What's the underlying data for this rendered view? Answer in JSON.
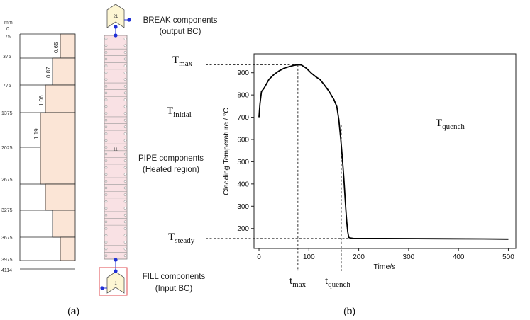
{
  "panel_a": {
    "caption": "(a)",
    "unit": "mm",
    "axis_ticks": [
      "0",
      "75",
      "375",
      "775",
      "1375",
      "2025",
      "2675",
      "3275",
      "3675",
      "3975",
      "4114"
    ],
    "power_factors": [
      "0.65",
      "0.87",
      "1.06",
      "1.19"
    ],
    "break_id": "21",
    "pipe_id": "11",
    "fill_id": "1",
    "labels": {
      "break_line1": "BREAK components",
      "break_line2": "(output BC)",
      "pipe_line1": "PIPE components",
      "pipe_line2": "(Heated region)",
      "fill_line1": "FILL components",
      "fill_line2": "(Input BC)"
    },
    "colors": {
      "fill": "#fbe5d6",
      "pipe_fill": "#f9e1e4",
      "node": "#1f2fd6",
      "frame": "#e0484f"
    }
  },
  "panel_b": {
    "caption": "(b)",
    "chart_data": {
      "type": "line",
      "xlabel": "Time/s",
      "ylabel": "Cladding Temperature / °C",
      "xlim": [
        -10,
        515
      ],
      "ylim": [
        110,
        985
      ],
      "x_ticks": [
        "0",
        "100",
        "200",
        "300",
        "400",
        "500"
      ],
      "y_ticks": [
        "200",
        "300",
        "400",
        "500",
        "600",
        "700",
        "800",
        "900"
      ],
      "series": [
        {
          "x": [
            0,
            2,
            5,
            10,
            20,
            30,
            40,
            50,
            60,
            70,
            78,
            85,
            95,
            105,
            115,
            122,
            130,
            140,
            150,
            156,
            160,
            164,
            167,
            170,
            172,
            174,
            176,
            178,
            180,
            183,
            190,
            250,
            350,
            450,
            500
          ],
          "y": [
            700,
            760,
            815,
            830,
            870,
            892,
            908,
            920,
            927,
            933,
            936,
            935,
            920,
            898,
            880,
            870,
            848,
            818,
            780,
            748,
            690,
            600,
            520,
            430,
            360,
            290,
            230,
            185,
            160,
            157,
            155,
            155,
            154,
            153,
            152
          ]
        }
      ],
      "annotations": {
        "Tmax": {
          "base": "T",
          "sub": "max",
          "value": 936
        },
        "Tinitial": {
          "base": "T",
          "sub": "initial",
          "value": 710
        },
        "Tquench": {
          "base": "T",
          "sub": "quench",
          "value": 665
        },
        "Tsteady": {
          "base": "T",
          "sub": "steady",
          "value": 155
        },
        "tmax": {
          "base": "t",
          "sub": "max",
          "value": 78
        },
        "tquench": {
          "base": "t",
          "sub": "quench",
          "value": 165
        }
      }
    }
  }
}
